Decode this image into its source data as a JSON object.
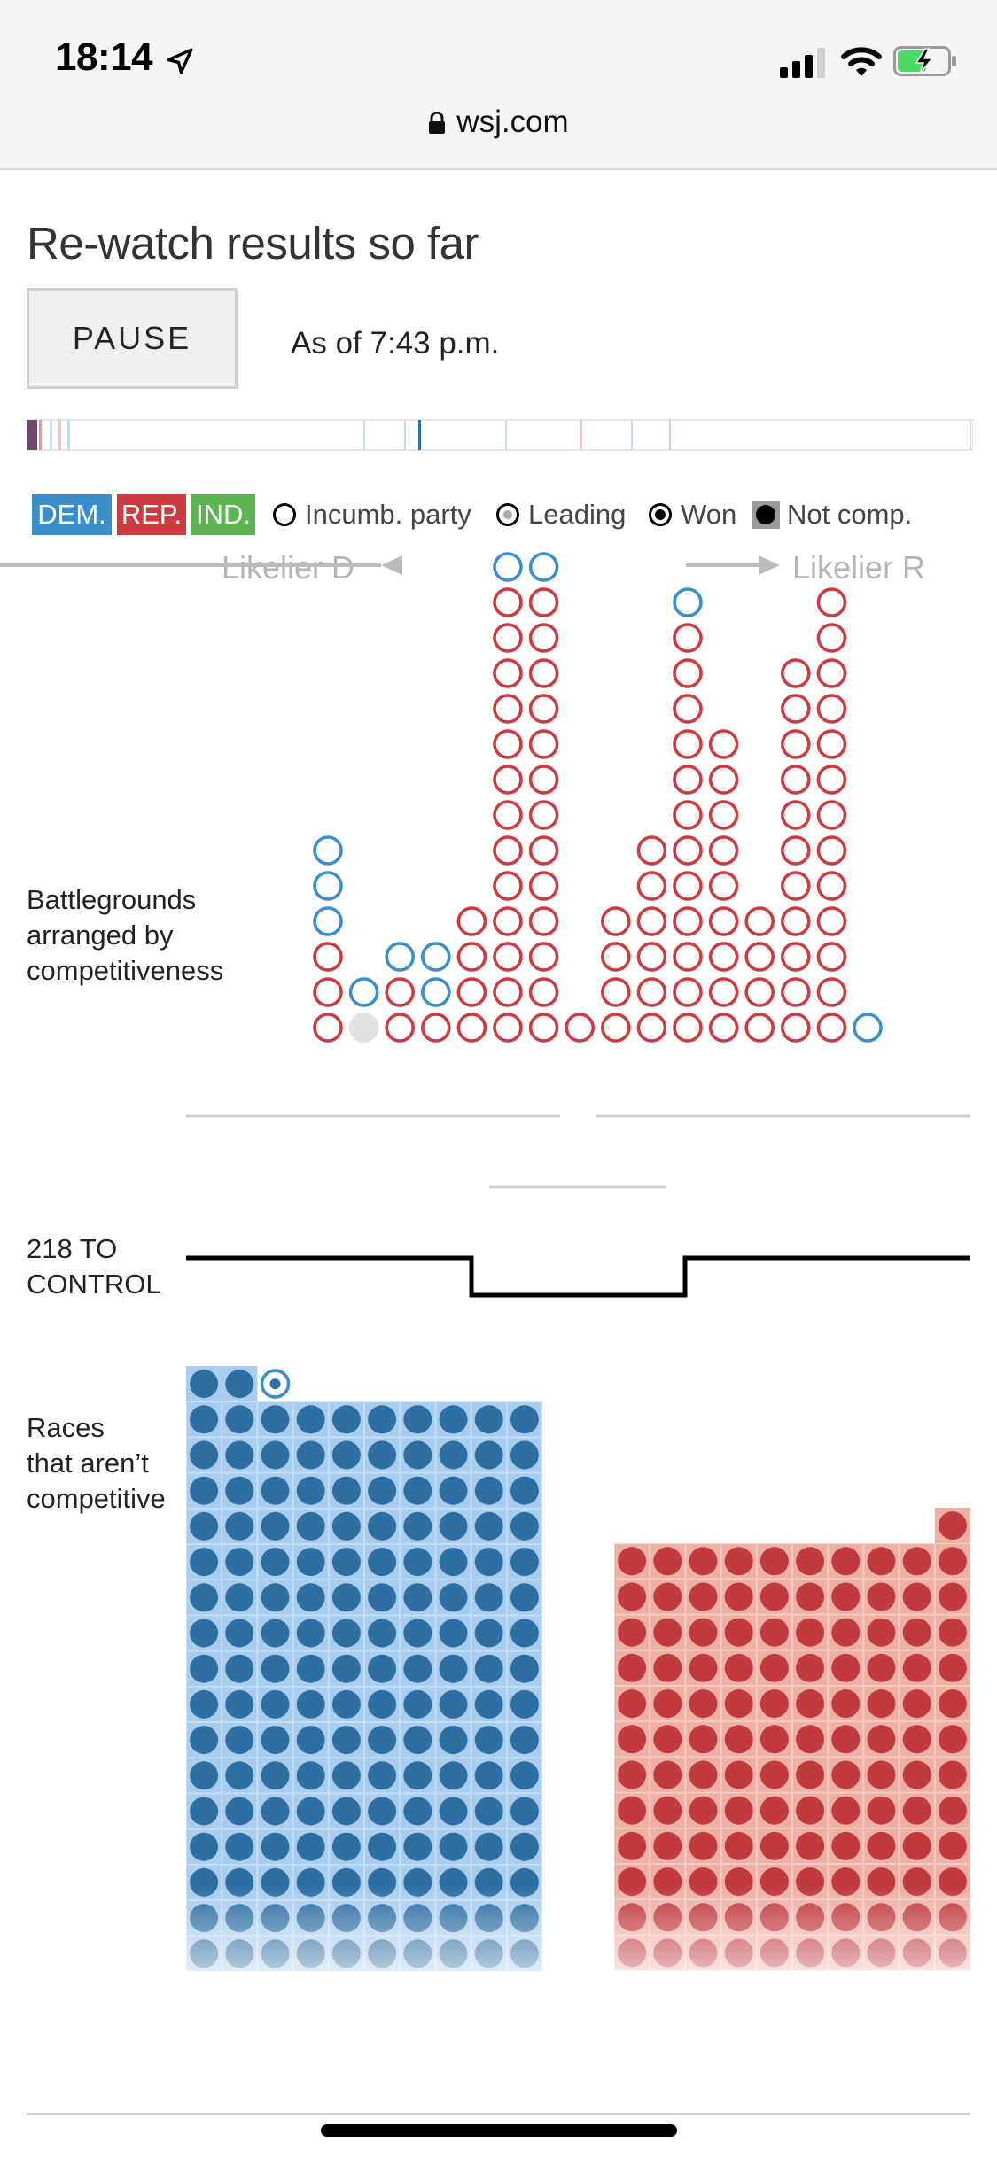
{
  "status_bar": {
    "time": "18:14",
    "location_icon": "location-arrow-icon",
    "signal_icon": "cell-signal-icon",
    "wifi_icon": "wifi-icon",
    "battery_icon": "battery-charging-icon"
  },
  "browser": {
    "url": "wsj.com",
    "lock_icon": "lock-icon"
  },
  "header": {
    "title": "Re-watch results so far",
    "pause_label": "PAUSE",
    "as_of": "As of 7:43 p.m."
  },
  "legend": {
    "dem": "DEM.",
    "rep": "REP.",
    "ind": "IND.",
    "incumbent": "Incumb. party",
    "leading": "Leading",
    "won": "Won",
    "not_comp": "Not comp."
  },
  "colors": {
    "dem": "#3a8fcb",
    "rep": "#cc3b3f",
    "ind": "#5cb553",
    "dem_fill": "#2e6fa3",
    "rep_fill": "#c13a3e",
    "dem_bg": "#a9cdef",
    "rep_bg": "#eeb0a5"
  },
  "direction": {
    "likelier_d": "Likelier D",
    "likelier_r": "Likelier R"
  },
  "labels": {
    "battlegrounds": [
      "Battlegrounds",
      "arranged by",
      "competitiveness"
    ],
    "control": [
      "218 TO",
      "CONTROL"
    ],
    "noncompetitive": [
      "Races",
      "that aren’t",
      "competitive"
    ]
  },
  "battleground_columns": [
    [
      "R",
      "R",
      "R",
      "D",
      "D",
      "D"
    ],
    [
      "N",
      "D"
    ],
    [
      "R",
      "R",
      "D"
    ],
    [
      "R",
      "D",
      "D"
    ],
    [
      "R",
      "R",
      "R",
      "R"
    ],
    [
      "R",
      "R",
      "R",
      "R",
      "R",
      "R",
      "R",
      "R",
      "R",
      "R",
      "R",
      "R",
      "R",
      "D"
    ],
    [
      "R",
      "R",
      "R",
      "R",
      "R",
      "R",
      "R",
      "R",
      "R",
      "R",
      "R",
      "R",
      "R",
      "D"
    ],
    [
      "R"
    ],
    [
      "R",
      "R",
      "R",
      "R"
    ],
    [
      "R",
      "R",
      "R",
      "R",
      "R",
      "R"
    ],
    [
      "R",
      "R",
      "R",
      "R",
      "R",
      "R",
      "R",
      "R",
      "R",
      "R",
      "R",
      "R",
      "D"
    ],
    [
      "R",
      "R",
      "R",
      "R",
      "R",
      "R",
      "R",
      "R",
      "R"
    ],
    [
      "R",
      "R",
      "R",
      "R"
    ],
    [
      "R",
      "R",
      "R",
      "R",
      "R",
      "R",
      "R",
      "R",
      "R",
      "R",
      "R"
    ],
    [
      "R",
      "R",
      "R",
      "R",
      "R",
      "R",
      "R",
      "R",
      "R",
      "R",
      "R",
      "R",
      "R"
    ],
    [
      "D"
    ]
  ],
  "noncompetitive": {
    "dem": {
      "full_rows": 16,
      "top_row_count": 2,
      "leading_extra": 1
    },
    "rep": {
      "full_rows": 12,
      "top_row_count": 1
    }
  }
}
